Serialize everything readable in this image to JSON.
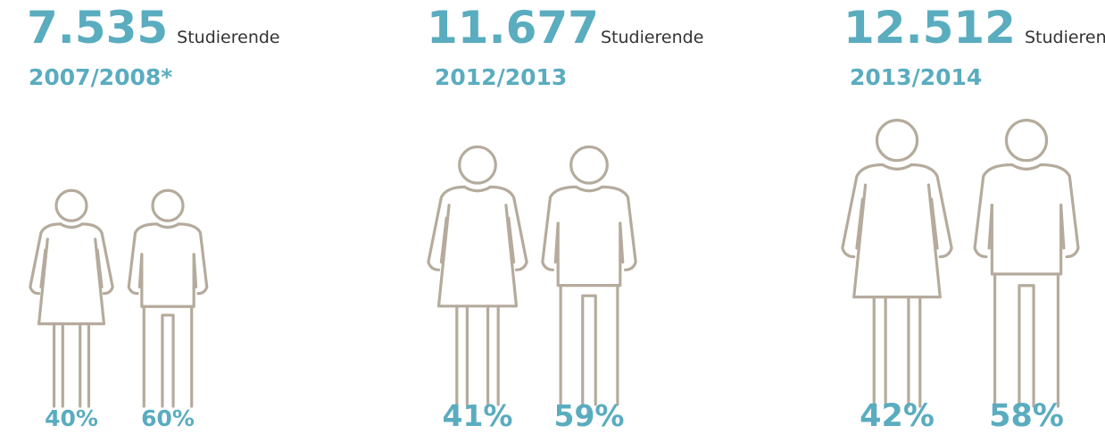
{
  "groups": [
    {
      "count": "7.535",
      "unit": "Studierende",
      "year": "2007/2008*",
      "female": "40%",
      "male": "60%"
    },
    {
      "count": "11.677",
      "unit": "Studierende",
      "year": "2012/2013",
      "female": "41%",
      "male": "59%"
    },
    {
      "count": "12.512",
      "unit": "Studierende",
      "year": "2013/2014",
      "female": "42%",
      "male": "58%"
    }
  ]
}
